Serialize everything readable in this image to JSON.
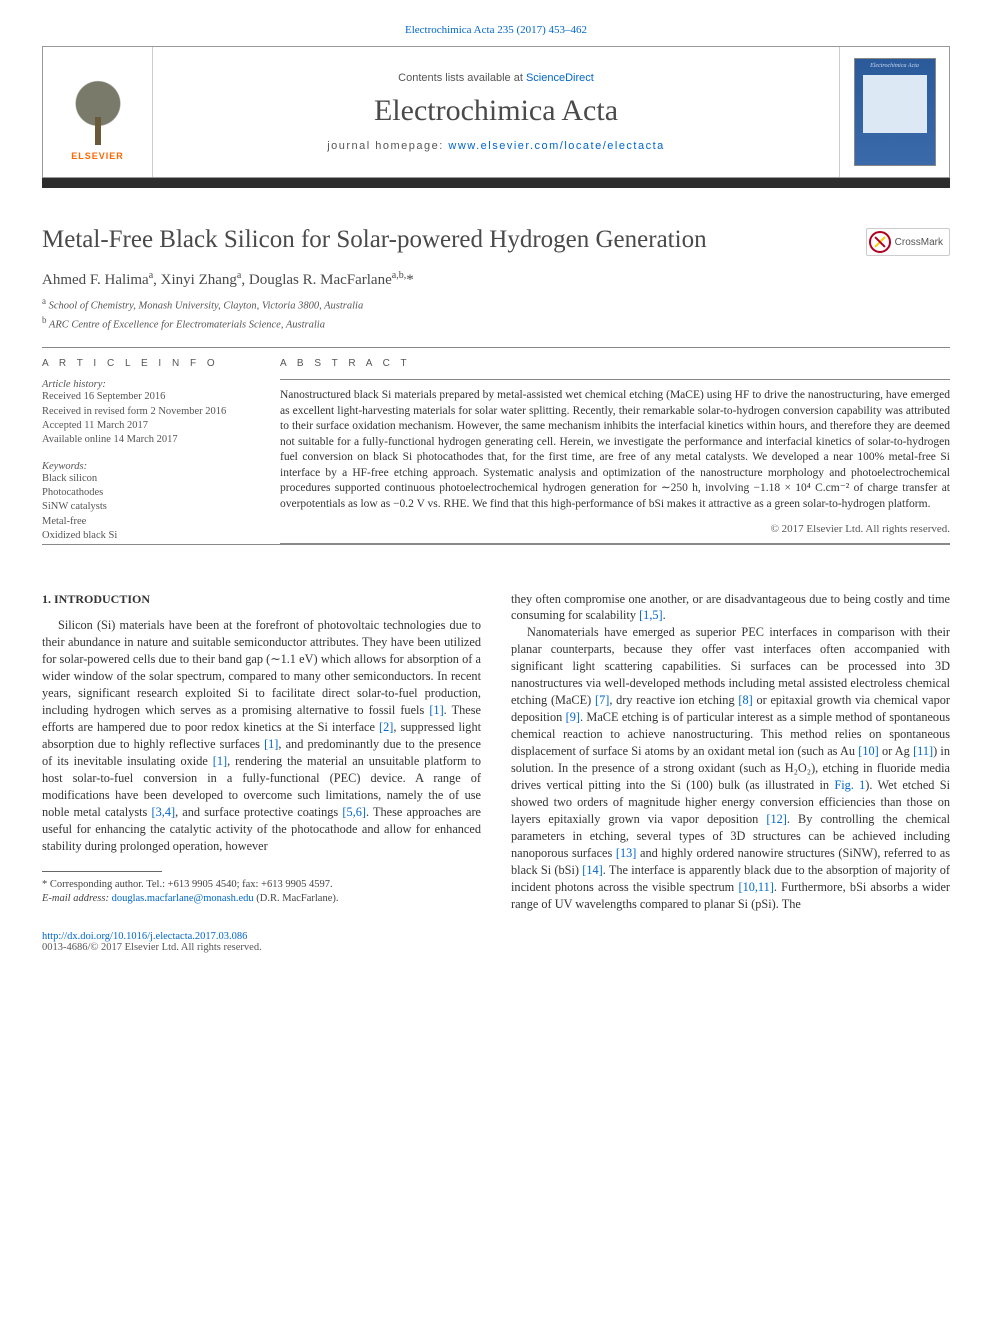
{
  "top_ref": {
    "journal": "Electrochimica Acta",
    "vol_year": "235 (2017)",
    "pages": "453–462"
  },
  "masthead": {
    "contents_prefix": "Contents lists available at ",
    "contents_link": "ScienceDirect",
    "journal_name": "Electrochimica Acta",
    "homepage_prefix": "journal homepage: ",
    "homepage_url": "www.elsevier.com/locate/electacta",
    "publisher": "ELSEVIER",
    "cover_title": "Electrochimica Acta"
  },
  "crossmark_label": "CrossMark",
  "article": {
    "title": "Metal-Free Black Silicon for Solar-powered Hydrogen Generation",
    "authors_html": "Ahmed F. Halima<sup>a</sup>, Xinyi Zhang<sup>a</sup>, Douglas R. MacFarlane<sup>a,b,</sup>*",
    "affiliations": [
      {
        "sup": "a",
        "text": "School of Chemistry, Monash University, Clayton, Victoria 3800, Australia"
      },
      {
        "sup": "b",
        "text": "ARC Centre of Excellence for Electromaterials Science, Australia"
      }
    ]
  },
  "info": {
    "heading": "A R T I C L E   I N F O",
    "history_label": "Article history:",
    "history": [
      "Received 16 September 2016",
      "Received in revised form 2 November 2016",
      "Accepted 11 March 2017",
      "Available online 14 March 2017"
    ],
    "keywords_label": "Keywords:",
    "keywords": [
      "Black silicon",
      "Photocathodes",
      "SiNW catalysts",
      "Metal-free",
      "Oxidized black Si"
    ]
  },
  "abstract": {
    "heading": "A B S T R A C T",
    "text": "Nanostructured black Si materials prepared by metal-assisted wet chemical etching (MaCE) using HF to drive the nanostructuring, have emerged as excellent light-harvesting materials for solar water splitting. Recently, their remarkable solar-to-hydrogen conversion capability was attributed to their surface oxidation mechanism. However, the same mechanism inhibits the interfacial kinetics within hours, and therefore they are deemed not suitable for a fully-functional hydrogen generating cell. Herein, we investigate the performance and interfacial kinetics of solar-to-hydrogen fuel conversion on black Si photocathodes that, for the first time, are free of any metal catalysts. We developed a near 100% metal-free Si interface by a HF-free etching approach. Systematic analysis and optimization of the nanostructure morphology and photoelectrochemical procedures supported continuous photoelectrochemical hydrogen generation for ∼250 h, involving −1.18 × 10⁴ C.cm⁻² of charge transfer at overpotentials as low as −0.2 V vs. RHE. We find that this high-performance of bSi makes it attractive as a green solar-to-hydrogen platform.",
    "copyright": "© 2017 Elsevier Ltd. All rights reserved."
  },
  "body": {
    "section_number": "1.",
    "section_title": "INTRODUCTION",
    "col1_p1a": "Silicon (Si) materials have been at the forefront of photovoltaic technologies due to their abundance in nature and suitable semiconductor attributes. They have been utilized for solar-powered cells due to their band gap (∼1.1 eV) which allows for absorption of a wider window of the solar spectrum, compared to many other semiconductors. In recent years, significant research exploited Si to facilitate direct solar-to-fuel production, including hydrogen which serves as a promising alternative to fossil fuels ",
    "ref1": "[1]",
    "col1_p1b": ". These efforts are hampered due to poor redox kinetics at the Si interface ",
    "ref2": "[2]",
    "col1_p1c": ", suppressed light absorption due to highly reflective surfaces ",
    "ref1b": "[1]",
    "col1_p1d": ", and predominantly due to the presence of its inevitable insulating oxide ",
    "ref1c": "[1]",
    "col1_p1e": ", rendering the material an unsuitable platform to host solar-to-fuel conversion in a fully-functional (PEC) device. A range of modifications have been developed to overcome such limitations, namely the of use noble metal catalysts ",
    "ref34": "[3,4]",
    "col1_p1f": ", and surface protective coatings ",
    "ref56": "[5,6]",
    "col1_p1g": ". These approaches are useful for enhancing the catalytic activity of the photocathode and allow for enhanced stability during prolonged operation, however",
    "col2_p1a": "they often compromise one another, or are disadvantageous due to being costly and time consuming for scalability ",
    "ref15": "[1,5]",
    "col2_p1b": ".",
    "col2_p2a": "Nanomaterials have emerged as superior PEC interfaces in comparison with their planar counterparts, because they offer vast interfaces often accompanied with significant light scattering capabilities. Si surfaces can be processed into 3D nanostructures via well-developed methods including metal assisted electroless chemical etching (MaCE) ",
    "ref7": "[7]",
    "col2_p2b": ", dry reactive ion etching ",
    "ref8": "[8]",
    "col2_p2c": " or epitaxial growth via chemical vapor deposition ",
    "ref9": "[9]",
    "col2_p2d": ". MaCE etching is of particular interest as a simple method of spontaneous chemical reaction to achieve nanostructuring. This method relies on spontaneous displacement of surface Si atoms by an oxidant metal ion (such as Au ",
    "ref10": "[10]",
    "col2_p2e": " or Ag ",
    "ref11": "[11]",
    "col2_p2f": ") in solution. In the presence of a strong oxidant (such as H₂O₂), etching in fluoride media drives vertical pitting into the Si (100) bulk (as illustrated in ",
    "fig1": "Fig. 1",
    "col2_p2g": "). Wet etched Si showed two orders of magnitude higher energy conversion efficiencies than those on layers epitaxially grown via vapor deposition ",
    "ref12": "[12]",
    "col2_p2h": ". By controlling the chemical parameters in etching, several types of 3D structures can be achieved including nanoporous surfaces ",
    "ref13": "[13]",
    "col2_p2i": " and highly ordered nanowire structures (SiNW), referred to as black Si (bSi) ",
    "ref14": "[14]",
    "col2_p2j": ". The interface is apparently black due to the absorption of majority of incident photons across the visible spectrum ",
    "ref1011": "[10,11]",
    "col2_p2k": ". Furthermore, bSi absorbs a wider range of UV wavelengths compared to planar Si (pSi). The"
  },
  "footnote": {
    "corr_label": "* Corresponding author. Tel.: +613 9905 4540; fax: +613 9905 4597.",
    "email_label": "E-mail address:",
    "email": "douglas.macfarlane@monash.edu",
    "email_person": "(D.R. MacFarlane)."
  },
  "footer": {
    "doi": "http://dx.doi.org/10.1016/j.electacta.2017.03.086",
    "issn_line": "0013-4686/© 2017 Elsevier Ltd. All rights reserved."
  },
  "colors": {
    "link": "#0066cc",
    "text": "#333333",
    "muted": "#555555",
    "rule": "#888888",
    "darkbar": "#2d2d2d",
    "elsevier_orange": "#ff6600",
    "cover_bg": "#2a5a9a",
    "crossmark_ring": "#b00020",
    "crossmark_yellow": "#ffcc00"
  }
}
